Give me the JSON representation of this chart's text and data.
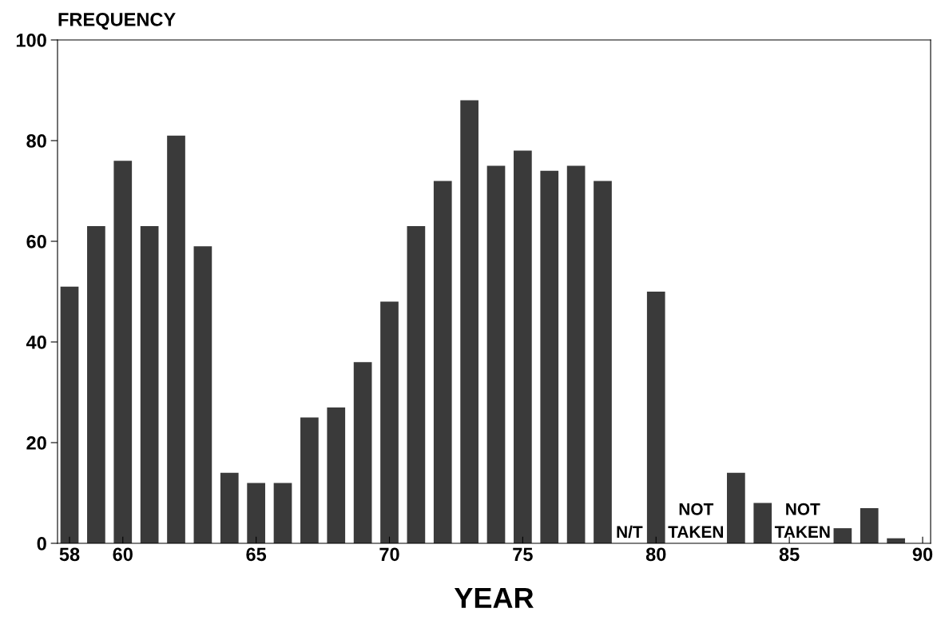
{
  "chart_data": {
    "type": "bar",
    "xlabel": "YEAR",
    "ylabel": "FREQUENCY",
    "x": [
      58,
      59,
      60,
      61,
      62,
      63,
      64,
      65,
      66,
      67,
      68,
      69,
      70,
      71,
      72,
      73,
      74,
      75,
      76,
      77,
      78,
      79,
      80,
      81,
      82,
      83,
      84,
      85,
      86,
      87,
      88,
      89
    ],
    "values": [
      51,
      63,
      76,
      63,
      81,
      59,
      14,
      12,
      12,
      25,
      27,
      36,
      48,
      63,
      72,
      88,
      75,
      78,
      74,
      75,
      72,
      null,
      50,
      null,
      null,
      14,
      8,
      null,
      null,
      3,
      7,
      1
    ],
    "color": "#3a3a3a",
    "xlim": [
      57.55,
      90.3
    ],
    "xticks": [
      58,
      60,
      65,
      70,
      75,
      80,
      85,
      90
    ],
    "ylim": [
      0,
      100
    ],
    "yticks": [
      0,
      20,
      40,
      60,
      80,
      100
    ],
    "annotations": [
      "N/T",
      "NOT\nTAKEN",
      "NOT\nTAKEN"
    ],
    "grid": false,
    "legend": false
  }
}
